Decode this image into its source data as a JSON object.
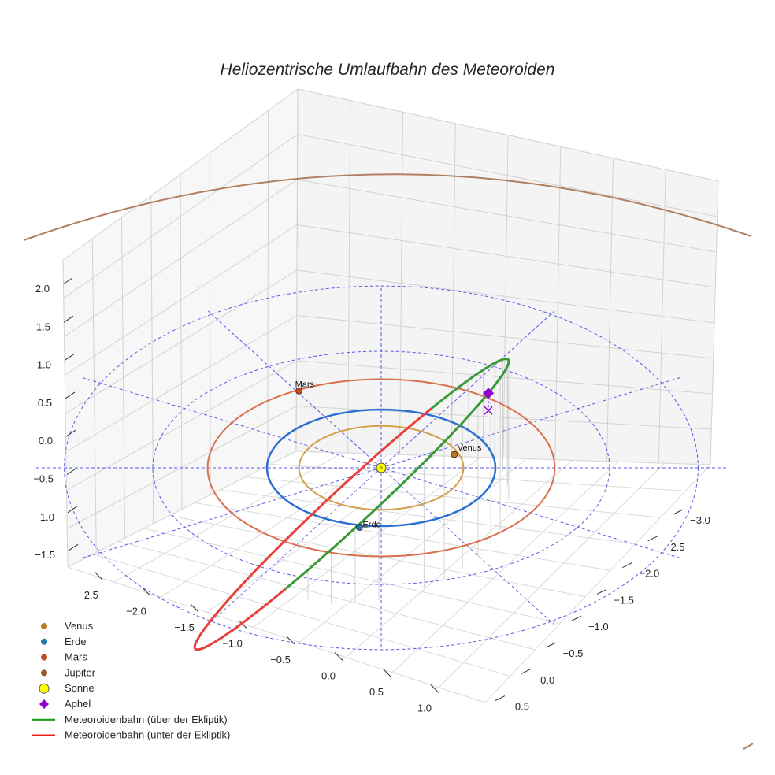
{
  "chart_data": {
    "type": "line",
    "projection": "3d",
    "title": "Heliozentrische Umlaufbahn des Meteoroiden",
    "xlabel": "",
    "ylabel": "",
    "zlabel": "",
    "x_ticks": [
      "−2.5",
      "−2.0",
      "−1.5",
      "−1.0",
      "−0.5",
      "0.0",
      "0.5",
      "1.0"
    ],
    "y_ticks": [
      "−3.0",
      "−2.5",
      "−2.0",
      "−1.5",
      "−1.0",
      "−0.5",
      "0.0",
      "0.5"
    ],
    "z_ticks": [
      "2.0",
      "1.5",
      "1.0",
      "0.5",
      "0.0",
      "−0.5",
      "−1.0",
      "−1.5"
    ],
    "grid": true,
    "legend_position": "bottom-left",
    "ecliptic_grid_radii_au": [
      1,
      2,
      3
    ],
    "planet_orbits": [
      {
        "name": "Venus",
        "radius_au": 0.72,
        "color": "#d4a04c"
      },
      {
        "name": "Erde",
        "radius_au": 1.0,
        "color": "#2b6fcf"
      },
      {
        "name": "Mars",
        "radius_au": 1.52,
        "color": "#d9704e"
      },
      {
        "name": "Jupiter",
        "radius_au": 5.2,
        "color": "#b08060"
      }
    ],
    "planet_positions": [
      {
        "name": "Venus",
        "label": "Venus",
        "color": "#c07a1c"
      },
      {
        "name": "Erde",
        "label": "Erde",
        "color": "#1f77b4"
      },
      {
        "name": "Mars",
        "label": "Mars",
        "color": "#c84a22"
      }
    ],
    "meteoroid_orbit": {
      "perihelion_au": 0.98,
      "aphelion_au": 2.3,
      "max_height_au": 1.55,
      "series": [
        {
          "name": "Meteoroidenbahn (über der Ekliptik)",
          "color": "#3a9a3a"
        },
        {
          "name": "Meteoroidenbahn (unter der Ekliptik)",
          "color": "#e8413c"
        }
      ]
    },
    "legend": [
      {
        "label": "Venus",
        "marker": "circle",
        "color": "#c07a1c"
      },
      {
        "label": "Erde",
        "marker": "circle",
        "color": "#1f77b4"
      },
      {
        "label": "Mars",
        "marker": "circle",
        "color": "#c84a22"
      },
      {
        "label": "Jupiter",
        "marker": "circle",
        "color": "#a0522d"
      },
      {
        "label": "Sonne",
        "marker": "circle-large",
        "color": "#ffff00"
      },
      {
        "label": "Aphel",
        "marker": "diamond",
        "color": "#9400d3"
      },
      {
        "label": "Meteoroidenbahn (über der Ekliptik)",
        "marker": "line",
        "color": "#1a9a1a"
      },
      {
        "label": "Meteoroidenbahn (unter der Ekliptik)",
        "marker": "line",
        "color": "#e8201c"
      }
    ]
  }
}
